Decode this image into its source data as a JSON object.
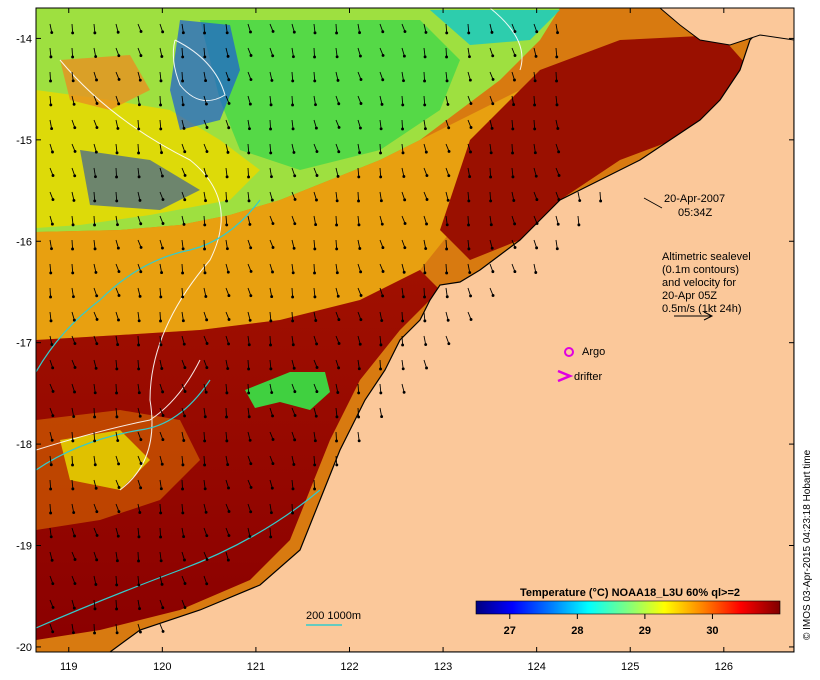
{
  "map": {
    "lon_range": [
      118.65,
      126.75
    ],
    "lat_range": [
      -20.05,
      -13.7
    ],
    "lon_ticks": [
      "119",
      "120",
      "121",
      "122",
      "123",
      "124",
      "125",
      "126"
    ],
    "lat_ticks": [
      "-14",
      "-15",
      "-16",
      "-17",
      "-18",
      "-19",
      "-20"
    ],
    "land_color": "#fbc89a",
    "coast_color": "#000000",
    "background_ocean": "#c86400"
  },
  "annotations": {
    "timestamp_date": "20-Apr-2007",
    "timestamp_time": "05:34Z",
    "altimetry_line1": "Altimetric sealevel",
    "altimetry_line2": "(0.1m contours)",
    "altimetry_line3": "and velocity for",
    "altimetry_line4": "20-Apr 05Z",
    "altimetry_line5": "0.5m/s (1kt 24h)",
    "argo_label": "Argo",
    "drifter_label": "drifter",
    "isobath_label": "200  1000m",
    "argo_color": "#e000e0",
    "drifter_color": "#e000e0",
    "isobath_color": "#33cccc"
  },
  "legend": {
    "title": "Temperature (°C) NOAA18_L3U 60% ql>=2",
    "ticks": [
      "27",
      "28",
      "29",
      "30"
    ],
    "range": [
      26.5,
      31.0
    ],
    "colors": [
      "#00007f",
      "#0000ff",
      "#007fff",
      "#00ffff",
      "#7fff7f",
      "#ffff00",
      "#ff7f00",
      "#ff0000",
      "#7f0000"
    ]
  },
  "credit": "© IMOS 03-Apr-2015 04:23:18 Hobart time"
}
